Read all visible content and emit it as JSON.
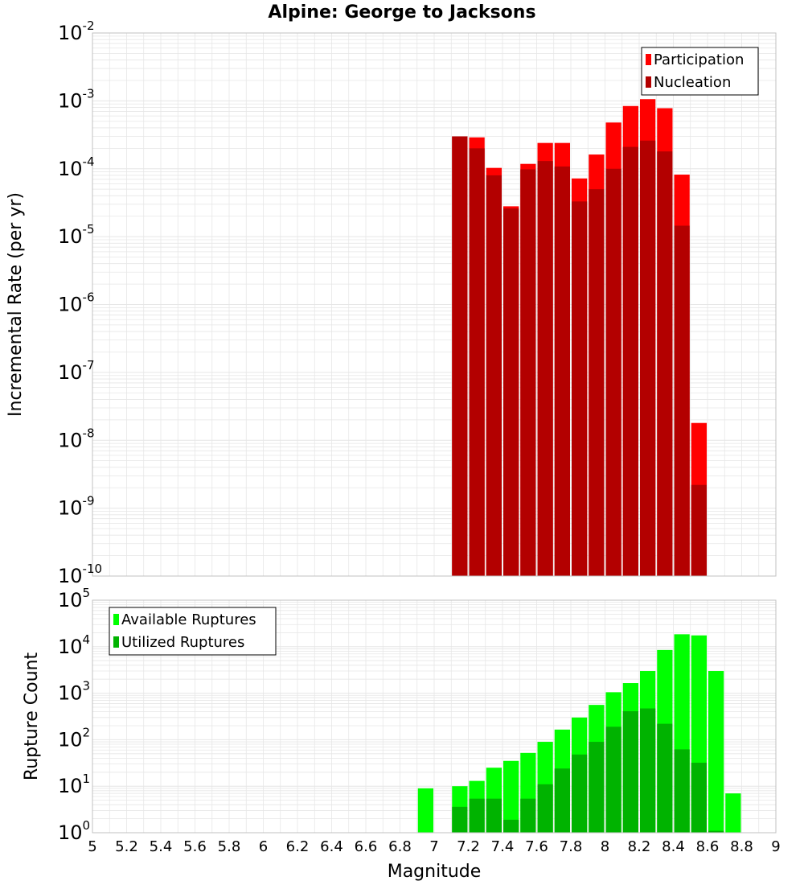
{
  "title": "Alpine: George to Jacksons",
  "xlabel": "Magnitude",
  "x_ticks": [
    "5",
    "5.2",
    "5.4",
    "5.6",
    "5.8",
    "6",
    "6.2",
    "6.4",
    "6.6",
    "6.8",
    "7",
    "7.2",
    "7.4",
    "7.6",
    "7.8",
    "8",
    "8.2",
    "8.4",
    "8.6",
    "8.8",
    "9"
  ],
  "top_panel": {
    "ylabel": "Incremental Rate (per yr)",
    "y_ticks": [
      {
        "base": "10",
        "exp": "-10"
      },
      {
        "base": "10",
        "exp": "-9"
      },
      {
        "base": "10",
        "exp": "-8"
      },
      {
        "base": "10",
        "exp": "-7"
      },
      {
        "base": "10",
        "exp": "-6"
      },
      {
        "base": "10",
        "exp": "-5"
      },
      {
        "base": "10",
        "exp": "-4"
      },
      {
        "base": "10",
        "exp": "-3"
      },
      {
        "base": "10",
        "exp": "-2"
      }
    ],
    "legend": [
      "Participation",
      "Nucleation"
    ]
  },
  "bottom_panel": {
    "ylabel": "Rupture Count",
    "y_ticks": [
      {
        "base": "10",
        "exp": "0"
      },
      {
        "base": "10",
        "exp": "1"
      },
      {
        "base": "10",
        "exp": "2"
      },
      {
        "base": "10",
        "exp": "3"
      },
      {
        "base": "10",
        "exp": "4"
      },
      {
        "base": "10",
        "exp": "5"
      }
    ],
    "legend": [
      "Available Ruptures",
      "Utilized Ruptures"
    ]
  },
  "colors": {
    "participation": "#ff0000",
    "nucleation": "#b30000",
    "available": "#00ff00",
    "utilized": "#00b300",
    "grid": "#e6e6e6",
    "frame": "#c0c0c0"
  },
  "chart_data": [
    {
      "type": "bar",
      "title": "Alpine: George to Jacksons",
      "xlabel": "Magnitude",
      "ylabel": "Incremental Rate (per yr)",
      "yscale": "log",
      "xlim": [
        5,
        9
      ],
      "ylim": [
        1e-10,
        0.01
      ],
      "bin_width": 0.1,
      "grid": true,
      "legend_position": "top-right",
      "x": [
        7.15,
        7.25,
        7.35,
        7.45,
        7.55,
        7.65,
        7.75,
        7.85,
        7.95,
        8.05,
        8.15,
        8.25,
        8.35,
        8.45,
        8.55
      ],
      "series": [
        {
          "name": "Participation",
          "values": [
            0.0003,
            0.00029,
            0.000103,
            2.8e-05,
            0.000118,
            0.00024,
            0.00024,
            7.2e-05,
            0.000162,
            0.00048,
            0.00084,
            0.00106,
            0.00078,
            8.2e-05,
            1.8e-08
          ]
        },
        {
          "name": "Nucleation",
          "values": [
            0.0003,
            0.0002,
            8e-05,
            2.6e-05,
            9.8e-05,
            0.00013,
            0.000108,
            3.3e-05,
            5e-05,
            0.0001,
            0.00021,
            0.00026,
            0.00018,
            1.45e-05,
            2.2e-09
          ]
        }
      ]
    },
    {
      "type": "bar",
      "xlabel": "Magnitude",
      "ylabel": "Rupture Count",
      "yscale": "log",
      "xlim": [
        5,
        9
      ],
      "ylim": [
        1,
        100000
      ],
      "bin_width": 0.1,
      "grid": true,
      "legend_position": "top-left",
      "x": [
        6.95,
        7.15,
        7.25,
        7.35,
        7.45,
        7.55,
        7.65,
        7.75,
        7.85,
        7.95,
        8.05,
        8.15,
        8.25,
        8.35,
        8.45,
        8.55,
        8.65,
        8.75
      ],
      "series": [
        {
          "name": "Available Ruptures",
          "values": [
            9,
            10,
            13,
            25,
            35,
            52,
            90,
            165,
            300,
            560,
            1050,
            1650,
            3000,
            8500,
            18500,
            17500,
            3000,
            7
          ]
        },
        {
          "name": "Utilized Ruptures",
          "values": [
            0,
            3.6,
            5.4,
            5.4,
            1.9,
            5.4,
            11,
            24,
            48,
            90,
            190,
            410,
            470,
            220,
            62,
            32,
            1.1,
            0
          ]
        }
      ]
    }
  ]
}
